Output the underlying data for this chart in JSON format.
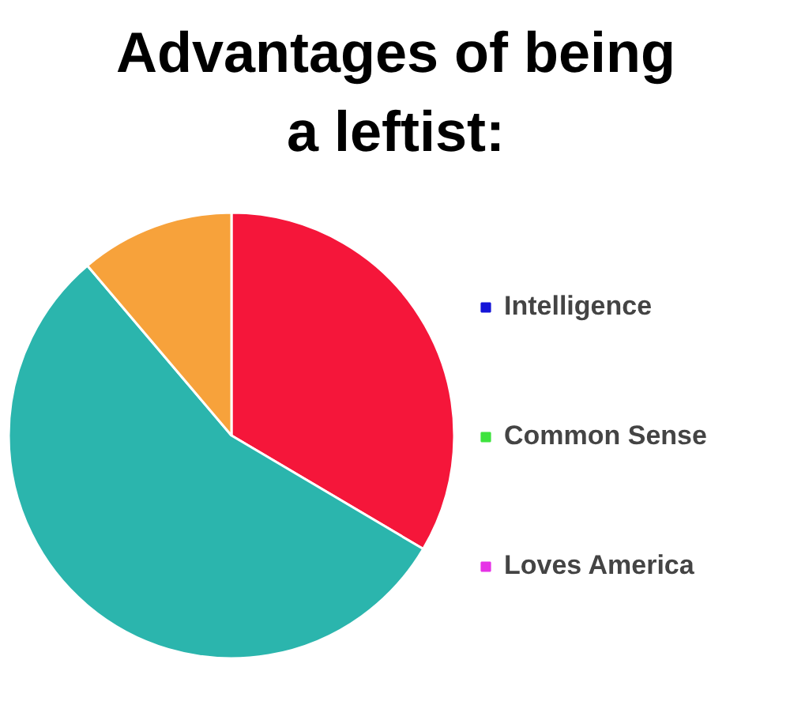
{
  "chart_data": {
    "type": "pie",
    "title": "Advantages of being a leftist:",
    "categories": [
      "Intelligence",
      "Common Sense",
      "Loves America",
      null,
      null,
      null
    ],
    "values": [
      0,
      0,
      0,
      33.5,
      55.3,
      11.2
    ],
    "colors": [
      "#1515d8",
      "#3ee33e",
      "#e632e6",
      "#f5163a",
      "#2bb5ad",
      "#f7a23b"
    ],
    "legend": "right"
  }
}
